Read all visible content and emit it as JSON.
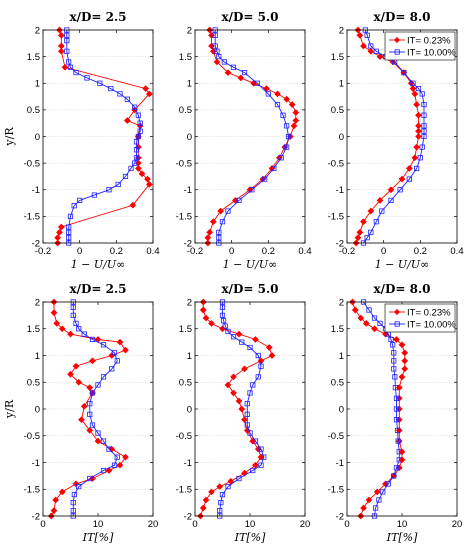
{
  "figure": {
    "colors": {
      "red": "#ff0000",
      "blue": "#2020ff",
      "grid": "#cfcfcf",
      "axis": "#000000"
    }
  },
  "chart_data": [
    {
      "type": "line",
      "title": "x/D= 2.5",
      "ylabel": "y/R",
      "xlabel": "1 − U/U∞",
      "xlim": [
        -0.2,
        0.4
      ],
      "ylim": [
        -2,
        2
      ],
      "xticks": [
        -0.2,
        0,
        0.2,
        0.4
      ],
      "xticklabels": [
        "-0.2",
        "0",
        "0.2",
        "0.4"
      ],
      "yticks": [
        -2,
        -1.5,
        -1,
        -0.5,
        0,
        0.5,
        1,
        1.5,
        2
      ],
      "yticklabels": [
        "-2",
        "-1.5",
        "-1",
        "-0.5",
        "0",
        "0.5",
        "1",
        "1.5",
        "2"
      ],
      "grid": "y",
      "series": [
        {
          "name": "IT= 0.23%",
          "color": "red",
          "marker": "diamond-filled",
          "x": [
            -0.12,
            -0.12,
            -0.11,
            -0.1,
            0.29,
            0.38,
            0.37,
            0.34,
            0.32,
            0.32,
            0.32,
            0.32,
            0.32,
            0.33,
            0.26,
            0.3,
            0.38,
            0.36,
            -0.08,
            -0.1,
            -0.1,
            -0.1,
            -0.11
          ],
          "y": [
            -2.0,
            -1.9,
            -1.8,
            -1.7,
            -1.29,
            -0.9,
            -0.8,
            -0.7,
            -0.6,
            -0.5,
            -0.4,
            -0.2,
            0.0,
            0.2,
            0.3,
            0.5,
            0.8,
            0.9,
            1.3,
            1.6,
            1.7,
            1.9,
            2.0
          ]
        },
        {
          "name": "IT= 10.00%",
          "color": "blue",
          "marker": "square-open",
          "x": [
            -0.06,
            -0.06,
            -0.06,
            -0.06,
            -0.05,
            -0.03,
            0.0,
            0.08,
            0.16,
            0.21,
            0.25,
            0.28,
            0.3,
            0.31,
            0.31,
            0.31,
            0.32,
            0.33,
            0.33,
            0.32,
            0.3,
            0.26,
            0.22,
            0.17,
            0.11,
            0.04,
            -0.02,
            -0.05,
            -0.06,
            -0.07,
            -0.07,
            -0.07,
            -0.07
          ],
          "y": [
            -2.0,
            -1.9,
            -1.8,
            -1.7,
            -1.5,
            -1.3,
            -1.2,
            -1.1,
            -1.0,
            -0.9,
            -0.75,
            -0.6,
            -0.5,
            -0.4,
            -0.25,
            -0.1,
            0.0,
            0.1,
            0.25,
            0.4,
            0.55,
            0.7,
            0.8,
            0.9,
            1.0,
            1.1,
            1.2,
            1.3,
            1.4,
            1.6,
            1.8,
            1.9,
            2.0
          ]
        }
      ]
    },
    {
      "type": "line",
      "title": "x/D= 5.0",
      "ylabel": "",
      "xlabel": "1 − U/U∞",
      "xlim": [
        -0.2,
        0.4
      ],
      "ylim": [
        -2,
        2
      ],
      "xticks": [
        -0.2,
        0,
        0.2,
        0.4
      ],
      "xticklabels": [
        "-0.2",
        "0",
        "0.2",
        "0.4"
      ],
      "yticks": [
        -2,
        -1.5,
        -1,
        -0.5,
        0,
        0.5,
        1,
        1.5,
        2
      ],
      "yticklabels": [
        "-2",
        "-1.5",
        "-1",
        "-0.5",
        "0",
        "0.5",
        "1",
        "1.5",
        "2"
      ],
      "grid": "y",
      "series": [
        {
          "name": "IT= 0.23%",
          "color": "red",
          "marker": "diamond-filled",
          "x": [
            -0.13,
            -0.13,
            -0.12,
            -0.1,
            -0.06,
            0.02,
            0.1,
            0.17,
            0.22,
            0.26,
            0.29,
            0.32,
            0.34,
            0.35,
            0.35,
            0.33,
            0.3,
            0.25,
            0.19,
            0.12,
            0.05,
            -0.02,
            -0.08,
            -0.1,
            -0.11,
            -0.11,
            -0.12
          ],
          "y": [
            -2.0,
            -1.9,
            -1.8,
            -1.6,
            -1.4,
            -1.2,
            -1.0,
            -0.8,
            -0.6,
            -0.4,
            -0.2,
            0.0,
            0.2,
            0.3,
            0.45,
            0.6,
            0.7,
            0.8,
            0.9,
            1.0,
            1.1,
            1.2,
            1.4,
            1.6,
            1.7,
            1.9,
            2.0
          ]
        },
        {
          "name": "IT= 10.00%",
          "color": "blue",
          "marker": "square-open",
          "x": [
            -0.07,
            -0.07,
            -0.07,
            -0.05,
            -0.02,
            0.04,
            0.11,
            0.18,
            0.23,
            0.27,
            0.3,
            0.31,
            0.3,
            0.28,
            0.25,
            0.2,
            0.14,
            0.07,
            0.01,
            -0.04,
            -0.07,
            -0.08,
            -0.09,
            -0.09,
            -0.09
          ],
          "y": [
            -2.0,
            -1.9,
            -1.8,
            -1.6,
            -1.4,
            -1.2,
            -1.0,
            -0.8,
            -0.6,
            -0.4,
            -0.2,
            0.0,
            0.2,
            0.4,
            0.6,
            0.8,
            1.0,
            1.2,
            1.3,
            1.4,
            1.5,
            1.6,
            1.7,
            1.9,
            2.0
          ]
        }
      ]
    },
    {
      "type": "line",
      "title": "x/D= 8.0",
      "ylabel": "",
      "xlabel": "1 − U/U∞",
      "xlim": [
        -0.2,
        0.4
      ],
      "ylim": [
        -2,
        2
      ],
      "xticks": [
        -0.2,
        0,
        0.2,
        0.4
      ],
      "xticklabels": [
        "-0.2",
        "0",
        "0.2",
        "0.4"
      ],
      "yticks": [
        -2,
        -1.5,
        -1,
        -0.5,
        0,
        0.5,
        1,
        1.5,
        2
      ],
      "yticklabels": [
        "-2",
        "-1.5",
        "-1",
        "-0.5",
        "0",
        "0.5",
        "1",
        "1.5",
        "2"
      ],
      "grid": "y",
      "legend": {
        "position": "top-right",
        "entries": [
          "IT= 0.23%",
          "IT= 10.00%"
        ]
      },
      "series": [
        {
          "name": "IT= 0.23%",
          "color": "red",
          "marker": "diamond-filled",
          "x": [
            -0.15,
            -0.14,
            -0.13,
            -0.11,
            -0.07,
            -0.02,
            0.04,
            0.1,
            0.14,
            0.17,
            0.18,
            0.19,
            0.19,
            0.19,
            0.19,
            0.18,
            0.17,
            0.16,
            0.15,
            0.11,
            0.05,
            -0.02,
            -0.07,
            -0.11,
            -0.13,
            -0.14
          ],
          "y": [
            -2.0,
            -1.9,
            -1.8,
            -1.6,
            -1.4,
            -1.2,
            -1.0,
            -0.8,
            -0.6,
            -0.4,
            -0.2,
            0.0,
            0.1,
            0.2,
            0.4,
            0.6,
            0.8,
            0.9,
            1.0,
            1.2,
            1.4,
            1.5,
            1.6,
            1.7,
            1.9,
            2.0
          ]
        },
        {
          "name": "IT= 10.00%",
          "color": "blue",
          "marker": "square-open",
          "x": [
            -0.11,
            -0.09,
            -0.07,
            -0.04,
            -0.01,
            0.04,
            0.09,
            0.14,
            0.18,
            0.2,
            0.21,
            0.22,
            0.22,
            0.22,
            0.22,
            0.22,
            0.21,
            0.19,
            0.16,
            0.11,
            0.06,
            0.01,
            -0.04,
            -0.07,
            -0.09,
            -0.1
          ],
          "y": [
            -2.0,
            -1.9,
            -1.8,
            -1.6,
            -1.4,
            -1.2,
            -1.0,
            -0.8,
            -0.6,
            -0.4,
            -0.2,
            0.0,
            0.1,
            0.2,
            0.4,
            0.6,
            0.8,
            0.9,
            1.0,
            1.2,
            1.4,
            1.5,
            1.6,
            1.7,
            1.9,
            2.0
          ]
        }
      ]
    },
    {
      "type": "line",
      "title": "x/D= 2.5",
      "ylabel": "y/R",
      "xlabel": "IT[%]",
      "xlim": [
        0,
        20
      ],
      "ylim": [
        -2,
        2
      ],
      "xticks": [
        0,
        10,
        20
      ],
      "xticklabels": [
        "0",
        "10",
        "20"
      ],
      "yticks": [
        -2,
        -1.5,
        -1,
        -0.5,
        0,
        0.5,
        1,
        1.5,
        2
      ],
      "yticklabels": [
        "-2",
        "-1.5",
        "-1",
        "-0.5",
        "0",
        "0.5",
        "1",
        "1.5",
        "2"
      ],
      "grid": "y",
      "series": [
        {
          "name": "IT= 0.23%",
          "color": "red",
          "marker": "diamond-filled",
          "x": [
            1.5,
            2.0,
            2.3,
            3.5,
            6.0,
            9.0,
            12.0,
            14.0,
            15.0,
            12.5,
            10.0,
            8.5,
            7.0,
            7.5,
            9.0,
            8.5,
            6.5,
            5.0,
            6.0,
            9.0,
            12.5,
            15.0,
            14.0,
            10.0,
            5.0,
            3.5,
            2.5,
            2.0,
            2.0
          ],
          "y": [
            -2.0,
            -1.9,
            -1.7,
            -1.55,
            -1.4,
            -1.3,
            -1.15,
            -1.05,
            -0.9,
            -0.75,
            -0.6,
            -0.4,
            -0.2,
            0.05,
            0.3,
            0.4,
            0.5,
            0.65,
            0.8,
            0.9,
            1.0,
            1.1,
            1.25,
            1.3,
            1.4,
            1.5,
            1.6,
            1.8,
            2.0
          ]
        },
        {
          "name": "IT= 10.00%",
          "color": "blue",
          "marker": "square-open",
          "x": [
            5.5,
            5.5,
            5.5,
            5.7,
            6.5,
            8.5,
            11.0,
            13.0,
            13.5,
            12.0,
            11.0,
            10.0,
            9.0,
            8.5,
            8.5,
            9.0,
            10.0,
            11.0,
            12.5,
            13.5,
            13.0,
            11.0,
            9.0,
            7.5,
            6.5,
            6.0,
            5.5,
            5.5,
            5.5
          ],
          "y": [
            -2.0,
            -1.9,
            -1.75,
            -1.6,
            -1.45,
            -1.3,
            -1.15,
            -1.05,
            -0.9,
            -0.75,
            -0.6,
            -0.45,
            -0.3,
            -0.1,
            0.1,
            0.3,
            0.45,
            0.6,
            0.75,
            0.9,
            1.05,
            1.2,
            1.3,
            1.4,
            1.5,
            1.6,
            1.75,
            1.9,
            2.0
          ]
        }
      ]
    },
    {
      "type": "line",
      "title": "x/D= 5.0",
      "ylabel": "",
      "xlabel": "IT[%]",
      "xlim": [
        0,
        20
      ],
      "ylim": [
        -2,
        2
      ],
      "xticks": [
        0,
        10,
        20
      ],
      "xticklabels": [
        "0",
        "10",
        "20"
      ],
      "yticks": [
        -2,
        -1.5,
        -1,
        -0.5,
        0,
        0.5,
        1,
        1.5,
        2
      ],
      "yticklabels": [
        "-2",
        "-1.5",
        "-1",
        "-0.5",
        "0",
        "0.5",
        "1",
        "1.5",
        "2"
      ],
      "grid": "y",
      "series": [
        {
          "name": "IT= 0.23%",
          "color": "red",
          "marker": "diamond-filled",
          "x": [
            1.0,
            1.5,
            2.0,
            3.0,
            4.5,
            6.5,
            9.0,
            11.0,
            12.0,
            11.5,
            10.5,
            9.5,
            9.0,
            8.5,
            8.0,
            7.0,
            6.0,
            7.0,
            9.0,
            12.0,
            14.0,
            13.5,
            11.0,
            8.0,
            5.0,
            3.0,
            2.0,
            1.5,
            1.5
          ],
          "y": [
            -2.0,
            -1.85,
            -1.7,
            -1.55,
            -1.45,
            -1.35,
            -1.2,
            -1.05,
            -0.9,
            -0.75,
            -0.6,
            -0.4,
            -0.2,
            0.0,
            0.15,
            0.3,
            0.45,
            0.6,
            0.75,
            0.9,
            1.0,
            1.15,
            1.3,
            1.4,
            1.5,
            1.6,
            1.7,
            1.85,
            2.0
          ]
        },
        {
          "name": "IT= 10.00%",
          "color": "blue",
          "marker": "square-open",
          "x": [
            4.5,
            4.5,
            4.7,
            5.0,
            6.0,
            8.0,
            10.5,
            12.0,
            12.5,
            12.0,
            11.0,
            10.0,
            9.5,
            9.5,
            9.5,
            10.0,
            10.5,
            11.5,
            12.0,
            11.5,
            10.0,
            8.5,
            7.0,
            6.0,
            5.5,
            5.2,
            5.0,
            5.0,
            5.0
          ],
          "y": [
            -2.0,
            -1.9,
            -1.75,
            -1.6,
            -1.45,
            -1.3,
            -1.15,
            -1.05,
            -0.9,
            -0.75,
            -0.6,
            -0.45,
            -0.3,
            -0.1,
            0.1,
            0.3,
            0.45,
            0.6,
            0.8,
            1.0,
            1.15,
            1.25,
            1.35,
            1.45,
            1.55,
            1.65,
            1.75,
            1.9,
            2.0
          ]
        }
      ]
    },
    {
      "type": "line",
      "title": "x/D= 8.0",
      "ylabel": "",
      "xlabel": "IT[%]",
      "xlim": [
        0,
        20
      ],
      "ylim": [
        -2,
        2
      ],
      "xticks": [
        0,
        10,
        20
      ],
      "xticklabels": [
        "0",
        "10",
        "20"
      ],
      "yticks": [
        -2,
        -1.5,
        -1,
        -0.5,
        0,
        0.5,
        1,
        1.5,
        2
      ],
      "yticklabels": [
        "-2",
        "-1.5",
        "-1",
        "-0.5",
        "0",
        "0.5",
        "1",
        "1.5",
        "2"
      ],
      "grid": "y",
      "legend": {
        "position": "top-right",
        "entries": [
          "IT= 0.23%",
          "IT= 10.00%"
        ]
      },
      "series": [
        {
          "name": "IT= 0.23%",
          "color": "red",
          "marker": "diamond-filled",
          "x": [
            2.5,
            3.0,
            4.0,
            5.5,
            7.0,
            8.5,
            9.5,
            10.0,
            10.0,
            9.5,
            9.5,
            9.5,
            9.5,
            9.5,
            9.5,
            10.0,
            10.5,
            10.5,
            10.5,
            10.0,
            9.0,
            7.0,
            5.0,
            3.5,
            2.5,
            1.5,
            1.0
          ],
          "y": [
            -2.0,
            -1.85,
            -1.7,
            -1.55,
            -1.4,
            -1.25,
            -1.1,
            -0.95,
            -0.8,
            -0.6,
            -0.4,
            -0.2,
            0.0,
            0.2,
            0.4,
            0.6,
            0.75,
            0.9,
            1.05,
            1.2,
            1.3,
            1.4,
            1.5,
            1.6,
            1.7,
            1.85,
            2.0
          ]
        },
        {
          "name": "IT= 10.00%",
          "color": "blue",
          "marker": "square-open",
          "x": [
            5.0,
            5.2,
            5.8,
            6.5,
            7.5,
            8.5,
            9.0,
            9.5,
            9.5,
            9.3,
            9.2,
            9.0,
            9.0,
            9.0,
            8.8,
            8.7,
            8.5,
            8.5,
            8.5,
            8.3,
            8.0,
            7.5,
            7.0,
            6.0,
            5.0,
            4.0,
            3.0
          ],
          "y": [
            -2.0,
            -1.85,
            -1.7,
            -1.55,
            -1.4,
            -1.25,
            -1.1,
            -0.95,
            -0.8,
            -0.6,
            -0.4,
            -0.2,
            0.0,
            0.2,
            0.4,
            0.6,
            0.75,
            0.9,
            1.05,
            1.2,
            1.3,
            1.4,
            1.5,
            1.6,
            1.7,
            1.85,
            2.0
          ]
        }
      ]
    }
  ]
}
